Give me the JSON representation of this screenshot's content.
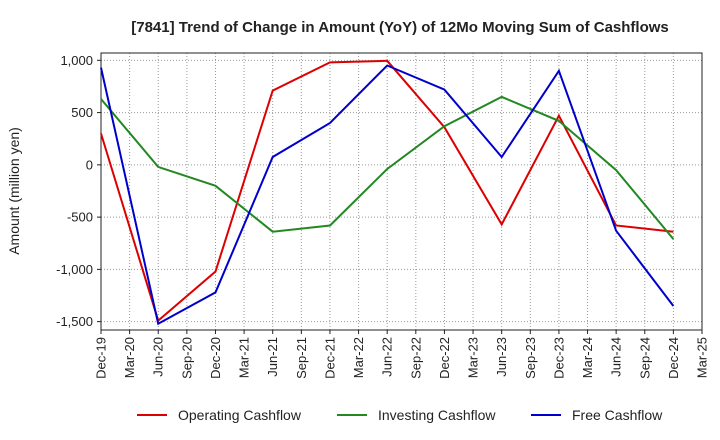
{
  "chart_data": {
    "type": "line",
    "title": "[7841]  Trend of Change in Amount (YoY) of 12Mo Moving Sum of Cashflows",
    "xlabel": "",
    "ylabel": "Amount (million yen)",
    "ylim": [
      -1580,
      1070
    ],
    "yticks": [
      1000,
      500,
      0,
      -500,
      -1000,
      -1500
    ],
    "ytick_labels": [
      "1,000",
      "500",
      "0",
      "-500",
      "-1,000",
      "-1,500"
    ],
    "categories": [
      "Dec-19",
      "Mar-20",
      "Jun-20",
      "Sep-20",
      "Dec-20",
      "Mar-21",
      "Jun-21",
      "Sep-21",
      "Dec-21",
      "Mar-22",
      "Jun-22",
      "Sep-22",
      "Dec-22",
      "Mar-23",
      "Jun-23",
      "Sep-23",
      "Dec-23",
      "Mar-24",
      "Jun-24",
      "Sep-24",
      "Dec-24",
      "Mar-25"
    ],
    "grid": true,
    "legend_position": "bottom",
    "series": [
      {
        "name": "Operating Cashflow",
        "color": "#dd0000",
        "points": [
          {
            "x": "Dec-19",
            "y": 300
          },
          {
            "x": "Jun-20",
            "y": -1490
          },
          {
            "x": "Dec-20",
            "y": -1020
          },
          {
            "x": "Jun-21",
            "y": 710
          },
          {
            "x": "Dec-21",
            "y": 980
          },
          {
            "x": "Jun-22",
            "y": 995
          },
          {
            "x": "Dec-22",
            "y": 360
          },
          {
            "x": "Jun-23",
            "y": -570
          },
          {
            "x": "Dec-23",
            "y": 470
          },
          {
            "x": "Jun-24",
            "y": -580
          },
          {
            "x": "Dec-24",
            "y": -640
          }
        ]
      },
      {
        "name": "Investing Cashflow",
        "color": "#228822",
        "points": [
          {
            "x": "Dec-19",
            "y": 630
          },
          {
            "x": "Jun-20",
            "y": -20
          },
          {
            "x": "Dec-20",
            "y": -200
          },
          {
            "x": "Jun-21",
            "y": -640
          },
          {
            "x": "Dec-21",
            "y": -580
          },
          {
            "x": "Jun-22",
            "y": -40
          },
          {
            "x": "Dec-22",
            "y": 370
          },
          {
            "x": "Jun-23",
            "y": 650
          },
          {
            "x": "Dec-23",
            "y": 420
          },
          {
            "x": "Jun-24",
            "y": -50
          },
          {
            "x": "Dec-24",
            "y": -710
          }
        ]
      },
      {
        "name": "Free Cashflow",
        "color": "#0000cc",
        "points": [
          {
            "x": "Dec-19",
            "y": 930
          },
          {
            "x": "Jun-20",
            "y": -1520
          },
          {
            "x": "Dec-20",
            "y": -1220
          },
          {
            "x": "Jun-21",
            "y": 75
          },
          {
            "x": "Dec-21",
            "y": 400
          },
          {
            "x": "Jun-22",
            "y": 950
          },
          {
            "x": "Dec-22",
            "y": 720
          },
          {
            "x": "Jun-23",
            "y": 75
          },
          {
            "x": "Dec-23",
            "y": 900
          },
          {
            "x": "Jun-24",
            "y": -630
          },
          {
            "x": "Dec-24",
            "y": -1350
          }
        ]
      }
    ]
  }
}
